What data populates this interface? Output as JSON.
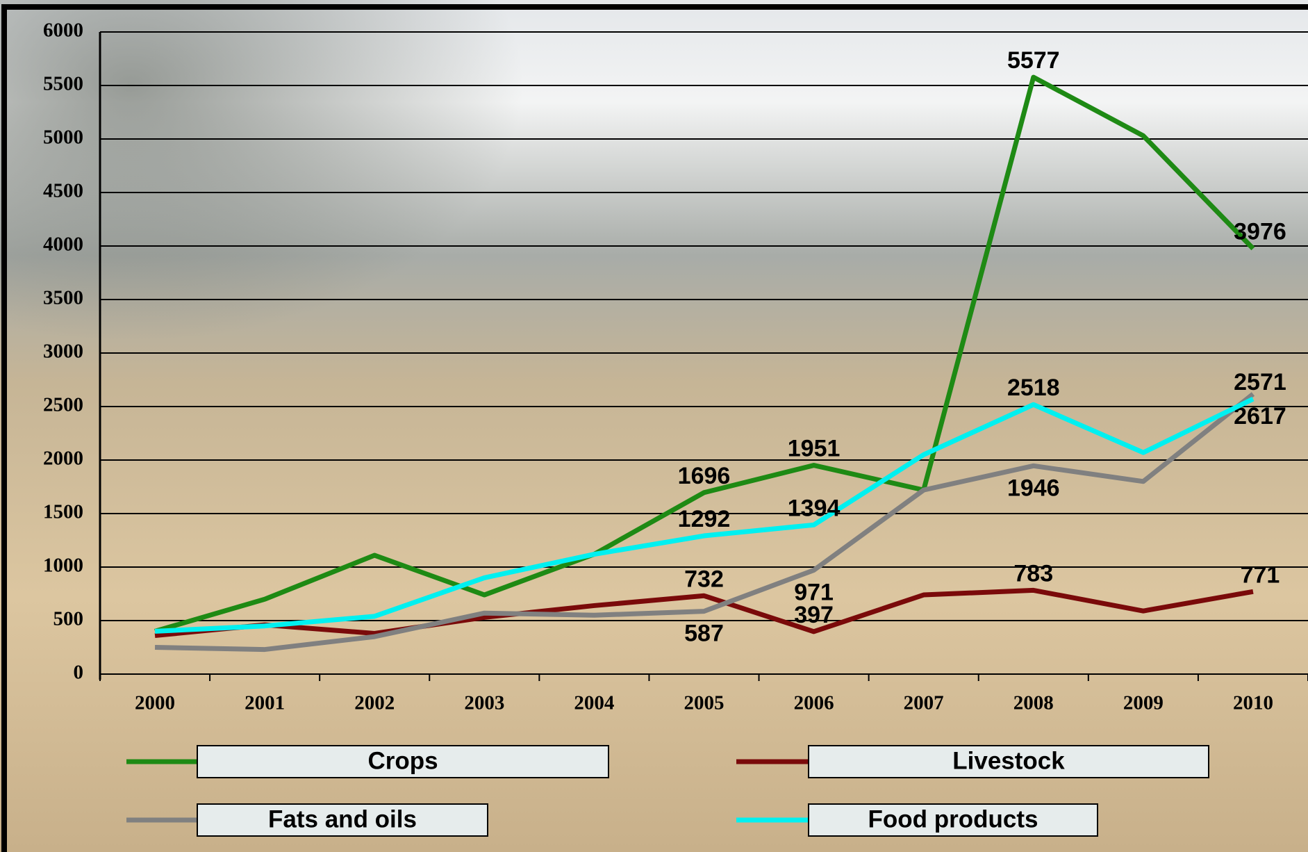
{
  "chart_data": {
    "type": "line",
    "categories": [
      "2000",
      "2001",
      "2002",
      "2003",
      "2004",
      "2005",
      "2006",
      "2007",
      "2008",
      "2009",
      "2010"
    ],
    "ylim": [
      0,
      6000
    ],
    "yticks": [
      0,
      500,
      1000,
      1500,
      2000,
      2500,
      3000,
      3500,
      4000,
      4500,
      5000,
      5500,
      6000
    ],
    "grid": true,
    "series": [
      {
        "name": "Crops",
        "color": "#1e8a14",
        "values": [
          400,
          700,
          1110,
          740,
          1120,
          1696,
          1951,
          1720,
          5577,
          5030,
          3976
        ],
        "value_labels": [
          null,
          null,
          null,
          null,
          null,
          "1696",
          "1951",
          null,
          "5577",
          null,
          "3976"
        ]
      },
      {
        "name": "Livestock",
        "color": "#7a0a0a",
        "values": [
          360,
          460,
          380,
          530,
          640,
          732,
          397,
          740,
          783,
          590,
          771
        ],
        "value_labels": [
          null,
          null,
          null,
          null,
          null,
          "732",
          "397",
          null,
          "783",
          null,
          "771"
        ]
      },
      {
        "name": "Fats and oils",
        "color": "#808080",
        "values": [
          250,
          230,
          350,
          570,
          550,
          587,
          971,
          1720,
          1946,
          1800,
          2617
        ],
        "value_labels": [
          null,
          null,
          null,
          null,
          null,
          "587",
          "971",
          null,
          "1946",
          null,
          "2617"
        ]
      },
      {
        "name": "Food products",
        "color": "#00f0f0",
        "values": [
          400,
          450,
          540,
          900,
          1120,
          1292,
          1394,
          2050,
          2518,
          2070,
          2571
        ],
        "value_labels": [
          null,
          null,
          null,
          null,
          null,
          "1292",
          "1394",
          null,
          "2518",
          null,
          "2571"
        ]
      }
    ]
  }
}
